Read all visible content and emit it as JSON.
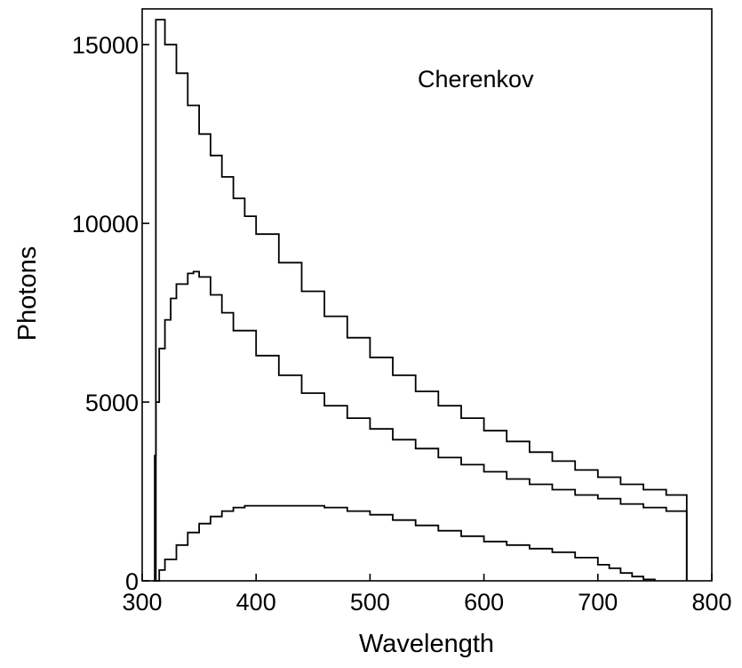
{
  "chart_data": {
    "type": "line",
    "title": "",
    "annotation": "Cherenkov",
    "xlabel": "Wavelength",
    "ylabel": "Photons",
    "xlim": [
      300,
      800
    ],
    "ylim": [
      0,
      16000
    ],
    "xticks": [
      300,
      400,
      500,
      600,
      700,
      800
    ],
    "yticks": [
      0,
      5000,
      10000,
      15000
    ],
    "grid": false,
    "legend": "none",
    "series": [
      {
        "x": [
          310,
          312,
          320,
          330,
          340,
          350,
          360,
          370,
          380,
          390,
          400,
          420,
          440,
          460,
          480,
          500,
          520,
          540,
          560,
          580,
          600,
          620,
          640,
          660,
          680,
          700,
          720,
          740,
          760,
          778
        ],
        "y": [
          0,
          15700,
          15000,
          14200,
          13300,
          12500,
          11900,
          11300,
          10700,
          10200,
          9700,
          8900,
          8100,
          7400,
          6800,
          6250,
          5750,
          5300,
          4900,
          4550,
          4200,
          3900,
          3600,
          3350,
          3100,
          2900,
          2700,
          2550,
          2400,
          2300
        ]
      },
      {
        "x": [
          310,
          311,
          312,
          315,
          320,
          325,
          330,
          340,
          345,
          350,
          360,
          370,
          380,
          400,
          420,
          440,
          460,
          480,
          500,
          520,
          540,
          560,
          580,
          600,
          620,
          640,
          660,
          680,
          700,
          720,
          740,
          760,
          778
        ],
        "y": [
          0,
          3500,
          5000,
          6500,
          7300,
          7900,
          8300,
          8600,
          8650,
          8500,
          8000,
          7500,
          7000,
          6300,
          5750,
          5250,
          4900,
          4550,
          4250,
          3950,
          3700,
          3450,
          3250,
          3050,
          2850,
          2700,
          2550,
          2400,
          2300,
          2150,
          2050,
          1950,
          1900
        ]
      },
      {
        "x": [
          310,
          315,
          320,
          330,
          340,
          350,
          360,
          370,
          380,
          390,
          400,
          420,
          440,
          460,
          480,
          500,
          520,
          540,
          560,
          580,
          600,
          620,
          640,
          660,
          680,
          700,
          710,
          720,
          730,
          740,
          750
        ],
        "y": [
          0,
          300,
          600,
          1000,
          1350,
          1600,
          1800,
          1950,
          2050,
          2100,
          2100,
          2100,
          2100,
          2050,
          1950,
          1850,
          1700,
          1550,
          1400,
          1250,
          1100,
          1000,
          900,
          800,
          650,
          450,
          350,
          220,
          120,
          40,
          0
        ]
      }
    ]
  }
}
